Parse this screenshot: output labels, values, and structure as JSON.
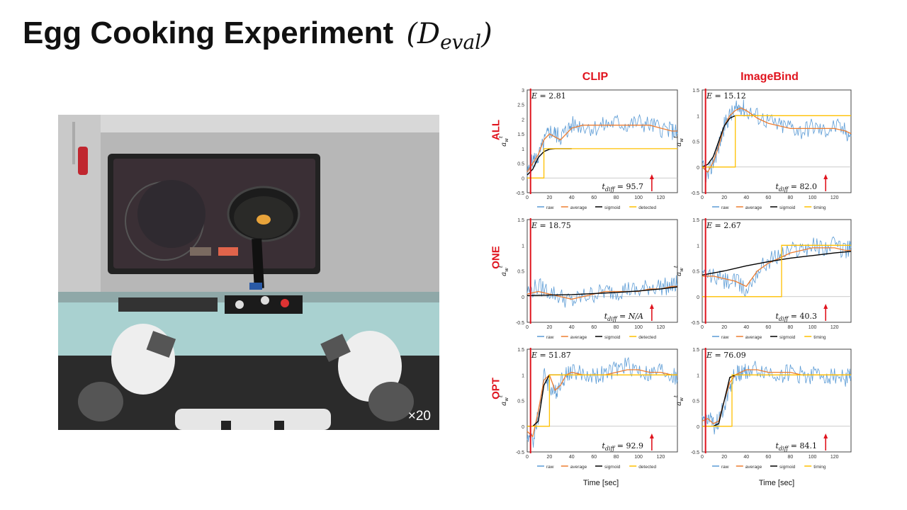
{
  "title": "Egg Cooking Experiment",
  "title_math": "D",
  "title_math_sub": "eval",
  "video": {
    "speed_label": "×20"
  },
  "column_labels": [
    "CLIP",
    "ImageBind"
  ],
  "row_labels": [
    "ALL",
    "ONE",
    "OPT"
  ],
  "ylabel": "a_w^t",
  "xlabel": "Time [sec]",
  "chart_data": [
    {
      "type": "line",
      "panel": "ALL-CLIP",
      "E": "2.81",
      "t_diff": "95.7",
      "xlim": [
        0,
        135
      ],
      "ylim": [
        -0.5,
        3
      ],
      "xticks": [
        0,
        20,
        40,
        60,
        80,
        100,
        120
      ],
      "yticks": [
        -0.5,
        0,
        0.5,
        1,
        1.5,
        2,
        2.5,
        3
      ],
      "start_x": 3,
      "arrow_x": 112,
      "legend": [
        "raw",
        "average",
        "sigmoid",
        "detected"
      ],
      "series": [
        {
          "name": "raw",
          "x": [
            0,
            5,
            10,
            15,
            20,
            25,
            30,
            35,
            40,
            50,
            60,
            70,
            80,
            90,
            100,
            110,
            120,
            130,
            135
          ],
          "y": [
            0.1,
            0.6,
            0.7,
            1.2,
            1.6,
            1.5,
            1.4,
            1.6,
            1.8,
            1.8,
            1.7,
            1.8,
            1.9,
            1.8,
            1.9,
            1.8,
            1.7,
            1.6,
            1.5
          ]
        },
        {
          "name": "average",
          "x": [
            0,
            5,
            10,
            15,
            20,
            25,
            30,
            35,
            40,
            50,
            60,
            70,
            80,
            90,
            100,
            110,
            120,
            130,
            135
          ],
          "y": [
            0.2,
            0.5,
            0.8,
            1.3,
            1.5,
            1.4,
            1.3,
            1.5,
            1.7,
            1.8,
            1.8,
            1.8,
            1.8,
            1.8,
            1.8,
            1.8,
            1.7,
            1.6,
            1.6
          ]
        },
        {
          "name": "sigmoid",
          "x": [
            0,
            5,
            10,
            15,
            20,
            25,
            30,
            35,
            40
          ],
          "y": [
            0.1,
            0.3,
            0.7,
            0.9,
            0.98,
            1.0,
            1.0,
            1.0,
            1.0
          ]
        },
        {
          "name": "detected",
          "x": [
            0,
            15,
            15,
            135
          ],
          "y": [
            0,
            0,
            1,
            1
          ]
        }
      ]
    },
    {
      "type": "line",
      "panel": "ALL-ImageBind",
      "E": "15.12",
      "t_diff": "82.0",
      "xlim": [
        0,
        135
      ],
      "ylim": [
        -0.5,
        1.5
      ],
      "xticks": [
        0,
        20,
        40,
        60,
        80,
        100,
        120
      ],
      "yticks": [
        -0.5,
        0,
        0.5,
        1,
        1.5
      ],
      "start_x": 3,
      "arrow_x": 112,
      "legend": [
        "raw",
        "average",
        "sigmoid",
        "timing"
      ],
      "series": [
        {
          "name": "raw",
          "x": [
            0,
            5,
            10,
            15,
            20,
            25,
            30,
            35,
            40,
            50,
            60,
            70,
            80,
            90,
            100,
            110,
            120,
            130,
            135
          ],
          "y": [
            0,
            -0.2,
            0.1,
            0.4,
            0.8,
            1.0,
            1.1,
            1.2,
            1.1,
            1.0,
            0.9,
            0.8,
            0.8,
            0.7,
            0.8,
            0.7,
            0.8,
            0.7,
            0.6
          ]
        },
        {
          "name": "average",
          "x": [
            0,
            5,
            10,
            15,
            20,
            25,
            30,
            35,
            40,
            50,
            60,
            70,
            80,
            90,
            100,
            110,
            120,
            130,
            135
          ],
          "y": [
            0,
            -0.1,
            0.1,
            0.4,
            0.8,
            1.0,
            1.1,
            1.15,
            1.1,
            0.95,
            0.85,
            0.8,
            0.75,
            0.75,
            0.75,
            0.75,
            0.75,
            0.7,
            0.65
          ]
        },
        {
          "name": "sigmoid",
          "x": [
            0,
            5,
            10,
            15,
            20,
            25,
            30,
            40,
            50
          ],
          "y": [
            0,
            0.05,
            0.2,
            0.5,
            0.8,
            0.95,
            1.0,
            1.0,
            1.0
          ]
        },
        {
          "name": "timing",
          "x": [
            0,
            30,
            30,
            135
          ],
          "y": [
            0,
            0,
            1,
            1
          ]
        }
      ]
    },
    {
      "type": "line",
      "panel": "ONE-CLIP",
      "E": "18.75",
      "t_diff": "N/A",
      "xlim": [
        0,
        135
      ],
      "ylim": [
        -0.5,
        1.5
      ],
      "xticks": [
        0,
        20,
        40,
        60,
        80,
        100,
        120
      ],
      "yticks": [
        -0.5,
        0,
        0.5,
        1,
        1.5
      ],
      "start_x": 3,
      "arrow_x": 112,
      "legend": [
        "raw",
        "average",
        "sigmoid",
        "detected"
      ],
      "series": [
        {
          "name": "raw",
          "x": [
            0,
            10,
            20,
            30,
            40,
            50,
            60,
            70,
            80,
            90,
            100,
            110,
            120,
            130,
            135
          ],
          "y": [
            0.1,
            0.2,
            0.1,
            0,
            -0.1,
            0,
            0.05,
            0.1,
            0.1,
            0.15,
            0.1,
            0.2,
            0.2,
            0.2,
            0.25
          ]
        },
        {
          "name": "average",
          "x": [
            0,
            10,
            20,
            30,
            40,
            50,
            60,
            70,
            80,
            90,
            100,
            110,
            120,
            130,
            135
          ],
          "y": [
            0.05,
            0.1,
            0.05,
            0,
            -0.05,
            0,
            0.05,
            0.1,
            0.1,
            0.1,
            0.1,
            0.15,
            0.15,
            0.2,
            0.2
          ]
        },
        {
          "name": "sigmoid",
          "x": [
            0,
            20,
            40,
            60,
            80,
            100,
            120,
            135
          ],
          "y": [
            0.02,
            0.03,
            0.04,
            0.06,
            0.08,
            0.11,
            0.15,
            0.19
          ]
        }
      ]
    },
    {
      "type": "line",
      "panel": "ONE-ImageBind",
      "E": "2.67",
      "t_diff": "40.3",
      "xlim": [
        0,
        135
      ],
      "ylim": [
        -0.5,
        1.5
      ],
      "xticks": [
        0,
        20,
        40,
        60,
        80,
        100,
        120
      ],
      "yticks": [
        -0.5,
        0,
        0.5,
        1,
        1.5
      ],
      "start_x": 3,
      "arrow_x": 112,
      "legend": [
        "raw",
        "average",
        "sigmoid",
        "timing"
      ],
      "series": [
        {
          "name": "raw",
          "x": [
            0,
            10,
            20,
            30,
            40,
            50,
            60,
            70,
            80,
            90,
            100,
            110,
            120,
            130,
            135
          ],
          "y": [
            0.4,
            0.4,
            0.3,
            0.3,
            0.1,
            0.5,
            0.7,
            0.8,
            0.9,
            0.95,
            1.0,
            0.95,
            1.0,
            0.9,
            0.95
          ]
        },
        {
          "name": "average",
          "x": [
            0,
            10,
            20,
            30,
            40,
            50,
            60,
            70,
            80,
            90,
            100,
            110,
            120,
            130,
            135
          ],
          "y": [
            0.4,
            0.4,
            0.35,
            0.3,
            0.2,
            0.5,
            0.65,
            0.75,
            0.85,
            0.9,
            0.95,
            0.95,
            0.95,
            0.9,
            0.9
          ]
        },
        {
          "name": "sigmoid",
          "x": [
            0,
            20,
            40,
            60,
            80,
            100,
            120,
            135
          ],
          "y": [
            0.42,
            0.5,
            0.6,
            0.68,
            0.75,
            0.8,
            0.85,
            0.88
          ]
        },
        {
          "name": "timing",
          "x": [
            0,
            72,
            72,
            135
          ],
          "y": [
            0,
            0,
            1,
            1
          ]
        }
      ]
    },
    {
      "type": "line",
      "panel": "OPT-CLIP",
      "E": "51.87",
      "t_diff": "92.9",
      "xlim": [
        0,
        135
      ],
      "ylim": [
        -0.5,
        1.5
      ],
      "xticks": [
        0,
        20,
        40,
        60,
        80,
        100,
        120
      ],
      "yticks": [
        -0.5,
        0,
        0.5,
        1,
        1.5
      ],
      "start_x": 3,
      "arrow_x": 112,
      "legend": [
        "raw",
        "average",
        "sigmoid",
        "detected"
      ],
      "series": [
        {
          "name": "raw",
          "x": [
            0,
            5,
            10,
            15,
            20,
            25,
            30,
            35,
            40,
            50,
            60,
            70,
            80,
            90,
            100,
            110,
            120,
            130,
            135
          ],
          "y": [
            -0.2,
            -0.3,
            0.2,
            1.0,
            0.8,
            0.6,
            0.9,
            1.0,
            1.1,
            1.0,
            1.0,
            1.0,
            1.1,
            1.2,
            1.1,
            1.0,
            1.1,
            1.0,
            0.9
          ]
        },
        {
          "name": "average",
          "x": [
            0,
            5,
            10,
            15,
            20,
            25,
            30,
            35,
            40,
            50,
            60,
            70,
            80,
            90,
            100,
            110,
            120,
            130,
            135
          ],
          "y": [
            -0.1,
            -0.2,
            0.3,
            0.9,
            1.0,
            0.7,
            0.8,
            1.0,
            1.05,
            1.0,
            1.0,
            1.0,
            1.05,
            1.1,
            1.1,
            1.05,
            1.05,
            1.0,
            1.0
          ]
        },
        {
          "name": "sigmoid",
          "x": [
            0,
            5,
            10,
            15,
            20,
            25,
            30
          ],
          "y": [
            0,
            0,
            0.1,
            0.8,
            1.0,
            1.0,
            1.0
          ]
        },
        {
          "name": "detected",
          "x": [
            0,
            20,
            20,
            135
          ],
          "y": [
            0,
            0,
            1,
            1
          ]
        }
      ]
    },
    {
      "type": "line",
      "panel": "OPT-ImageBind",
      "E": "76.09",
      "t_diff": "84.1",
      "xlim": [
        0,
        135
      ],
      "ylim": [
        -0.5,
        1.5
      ],
      "xticks": [
        0,
        20,
        40,
        60,
        80,
        100,
        120
      ],
      "yticks": [
        -0.5,
        0,
        0.5,
        1,
        1.5
      ],
      "start_x": 3,
      "arrow_x": 112,
      "legend": [
        "raw",
        "average",
        "sigmoid",
        "timing"
      ],
      "series": [
        {
          "name": "raw",
          "x": [
            0,
            5,
            10,
            15,
            20,
            25,
            30,
            35,
            40,
            50,
            60,
            70,
            80,
            90,
            100,
            110,
            120,
            130,
            135
          ],
          "y": [
            0.1,
            0.2,
            0,
            0.1,
            0.4,
            0.8,
            1.0,
            1.05,
            1.1,
            1.1,
            1.05,
            1.0,
            1.05,
            1.0,
            1.0,
            1.0,
            1.0,
            0.95,
            1.0
          ]
        },
        {
          "name": "average",
          "x": [
            0,
            5,
            10,
            15,
            20,
            25,
            30,
            35,
            40,
            50,
            60,
            70,
            80,
            90,
            100,
            110,
            120,
            130,
            135
          ],
          "y": [
            0.1,
            0.15,
            0.05,
            0.1,
            0.5,
            0.85,
            1.0,
            1.05,
            1.1,
            1.1,
            1.05,
            1.05,
            1.05,
            1.0,
            1.0,
            1.0,
            1.0,
            1.0,
            1.0
          ]
        },
        {
          "name": "sigmoid",
          "x": [
            0,
            10,
            15,
            20,
            25,
            30,
            35
          ],
          "y": [
            0,
            0,
            0.05,
            0.5,
            0.95,
            1.0,
            1.0
          ]
        },
        {
          "name": "timing",
          "x": [
            0,
            27,
            27,
            135
          ],
          "y": [
            0,
            0,
            1,
            1
          ]
        }
      ]
    }
  ],
  "colors": {
    "raw": "#5b9bd5",
    "average": "#ed7d31",
    "sigmoid": "#000000",
    "detected": "#ffc000",
    "timing": "#ffc000",
    "marker": "#e0141e",
    "label_red": "#e0141e"
  }
}
